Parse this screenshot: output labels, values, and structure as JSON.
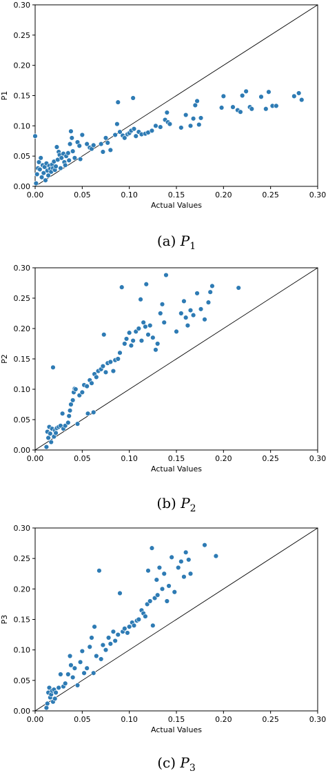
{
  "chart_data": [
    {
      "type": "scatter",
      "xlabel": "Actual Values",
      "ylabel": "P1",
      "xlim": [
        0,
        0.3
      ],
      "ylim": [
        0,
        0.3
      ],
      "xticks": [
        "0.00",
        "0.05",
        "0.10",
        "0.15",
        "0.20",
        "0.25",
        "0.30"
      ],
      "yticks": [
        "0.00",
        "0.05",
        "0.10",
        "0.15",
        "0.20",
        "0.25",
        "0.30"
      ],
      "reference_line": "y = x",
      "caption": {
        "letter": "(a)",
        "var": "P",
        "sub": "1"
      },
      "marker_color": "#2e7bb4",
      "points": [
        [
          0.0,
          0.083
        ],
        [
          0.001,
          0.005
        ],
        [
          0.002,
          0.02
        ],
        [
          0.003,
          0.03
        ],
        [
          0.004,
          0.04
        ],
        [
          0.005,
          0.028
        ],
        [
          0.006,
          0.047
        ],
        [
          0.007,
          0.015
        ],
        [
          0.008,
          0.035
        ],
        [
          0.009,
          0.022
        ],
        [
          0.01,
          0.032
        ],
        [
          0.011,
          0.01
        ],
        [
          0.012,
          0.038
        ],
        [
          0.013,
          0.026
        ],
        [
          0.014,
          0.018
        ],
        [
          0.015,
          0.034
        ],
        [
          0.016,
          0.029
        ],
        [
          0.017,
          0.024
        ],
        [
          0.018,
          0.036
        ],
        [
          0.019,
          0.03
        ],
        [
          0.02,
          0.041
        ],
        [
          0.021,
          0.027
        ],
        [
          0.022,
          0.033
        ],
        [
          0.023,
          0.065
        ],
        [
          0.024,
          0.044
        ],
        [
          0.025,
          0.057
        ],
        [
          0.026,
          0.052
        ],
        [
          0.027,
          0.03
        ],
        [
          0.028,
          0.047
        ],
        [
          0.03,
          0.054
        ],
        [
          0.031,
          0.04
        ],
        [
          0.032,
          0.035
        ],
        [
          0.033,
          0.05
        ],
        [
          0.035,
          0.055
        ],
        [
          0.036,
          0.043
        ],
        [
          0.037,
          0.07
        ],
        [
          0.038,
          0.091
        ],
        [
          0.039,
          0.08
        ],
        [
          0.04,
          0.058
        ],
        [
          0.042,
          0.047
        ],
        [
          0.045,
          0.073
        ],
        [
          0.047,
          0.067
        ],
        [
          0.048,
          0.045
        ],
        [
          0.05,
          0.085
        ],
        [
          0.055,
          0.07
        ],
        [
          0.058,
          0.064
        ],
        [
          0.06,
          0.062
        ],
        [
          0.062,
          0.068
        ],
        [
          0.07,
          0.07
        ],
        [
          0.072,
          0.057
        ],
        [
          0.075,
          0.08
        ],
        [
          0.077,
          0.072
        ],
        [
          0.08,
          0.06
        ],
        [
          0.085,
          0.085
        ],
        [
          0.087,
          0.103
        ],
        [
          0.088,
          0.139
        ],
        [
          0.09,
          0.09
        ],
        [
          0.093,
          0.084
        ],
        [
          0.095,
          0.08
        ],
        [
          0.098,
          0.086
        ],
        [
          0.1,
          0.088
        ],
        [
          0.102,
          0.092
        ],
        [
          0.104,
          0.146
        ],
        [
          0.105,
          0.095
        ],
        [
          0.107,
          0.083
        ],
        [
          0.11,
          0.09
        ],
        [
          0.113,
          0.086
        ],
        [
          0.117,
          0.087
        ],
        [
          0.12,
          0.089
        ],
        [
          0.124,
          0.092
        ],
        [
          0.128,
          0.1
        ],
        [
          0.133,
          0.098
        ],
        [
          0.138,
          0.11
        ],
        [
          0.14,
          0.122
        ],
        [
          0.141,
          0.106
        ],
        [
          0.143,
          0.103
        ],
        [
          0.155,
          0.097
        ],
        [
          0.16,
          0.118
        ],
        [
          0.165,
          0.1
        ],
        [
          0.168,
          0.112
        ],
        [
          0.17,
          0.134
        ],
        [
          0.172,
          0.141
        ],
        [
          0.174,
          0.102
        ],
        [
          0.176,
          0.113
        ],
        [
          0.198,
          0.13
        ],
        [
          0.2,
          0.149
        ],
        [
          0.21,
          0.131
        ],
        [
          0.215,
          0.126
        ],
        [
          0.218,
          0.123
        ],
        [
          0.22,
          0.15
        ],
        [
          0.224,
          0.157
        ],
        [
          0.228,
          0.131
        ],
        [
          0.23,
          0.128
        ],
        [
          0.24,
          0.148
        ],
        [
          0.245,
          0.128
        ],
        [
          0.248,
          0.156
        ],
        [
          0.252,
          0.133
        ],
        [
          0.256,
          0.133
        ],
        [
          0.275,
          0.149
        ],
        [
          0.28,
          0.154
        ],
        [
          0.283,
          0.143
        ]
      ]
    },
    {
      "type": "scatter",
      "xlabel": "Actual Values",
      "ylabel": "P2",
      "xlim": [
        0,
        0.3
      ],
      "ylim": [
        0,
        0.3
      ],
      "xticks": [
        "0.00",
        "0.05",
        "0.10",
        "0.15",
        "0.20",
        "0.25",
        "0.30"
      ],
      "yticks": [
        "0.00",
        "0.05",
        "0.10",
        "0.15",
        "0.20",
        "0.25",
        "0.30"
      ],
      "reference_line": "y = x",
      "caption": {
        "letter": "(b)",
        "var": "P",
        "sub": "2"
      },
      "marker_color": "#2e7bb4",
      "points": [
        [
          0.012,
          0.005
        ],
        [
          0.013,
          0.03
        ],
        [
          0.014,
          0.02
        ],
        [
          0.015,
          0.038
        ],
        [
          0.016,
          0.027
        ],
        [
          0.017,
          0.013
        ],
        [
          0.018,
          0.035
        ],
        [
          0.019,
          0.136
        ],
        [
          0.02,
          0.022
        ],
        [
          0.021,
          0.032
        ],
        [
          0.022,
          0.028
        ],
        [
          0.023,
          0.036
        ],
        [
          0.025,
          0.038
        ],
        [
          0.027,
          0.04
        ],
        [
          0.029,
          0.06
        ],
        [
          0.03,
          0.035
        ],
        [
          0.032,
          0.04
        ],
        [
          0.035,
          0.045
        ],
        [
          0.036,
          0.056
        ],
        [
          0.037,
          0.065
        ],
        [
          0.038,
          0.075
        ],
        [
          0.04,
          0.082
        ],
        [
          0.041,
          0.095
        ],
        [
          0.042,
          0.101
        ],
        [
          0.043,
          0.1
        ],
        [
          0.045,
          0.043
        ],
        [
          0.047,
          0.09
        ],
        [
          0.05,
          0.095
        ],
        [
          0.052,
          0.107
        ],
        [
          0.055,
          0.105
        ],
        [
          0.056,
          0.06
        ],
        [
          0.058,
          0.115
        ],
        [
          0.06,
          0.11
        ],
        [
          0.062,
          0.062
        ],
        [
          0.063,
          0.125
        ],
        [
          0.065,
          0.12
        ],
        [
          0.067,
          0.13
        ],
        [
          0.07,
          0.133
        ],
        [
          0.072,
          0.138
        ],
        [
          0.073,
          0.19
        ],
        [
          0.075,
          0.128
        ],
        [
          0.077,
          0.143
        ],
        [
          0.08,
          0.145
        ],
        [
          0.083,
          0.13
        ],
        [
          0.085,
          0.148
        ],
        [
          0.088,
          0.15
        ],
        [
          0.09,
          0.16
        ],
        [
          0.092,
          0.268
        ],
        [
          0.095,
          0.175
        ],
        [
          0.097,
          0.183
        ],
        [
          0.1,
          0.193
        ],
        [
          0.102,
          0.172
        ],
        [
          0.104,
          0.18
        ],
        [
          0.107,
          0.195
        ],
        [
          0.11,
          0.2
        ],
        [
          0.112,
          0.248
        ],
        [
          0.113,
          0.18
        ],
        [
          0.115,
          0.21
        ],
        [
          0.117,
          0.203
        ],
        [
          0.118,
          0.273
        ],
        [
          0.12,
          0.19
        ],
        [
          0.122,
          0.205
        ],
        [
          0.125,
          0.185
        ],
        [
          0.128,
          0.165
        ],
        [
          0.13,
          0.175
        ],
        [
          0.133,
          0.225
        ],
        [
          0.135,
          0.24
        ],
        [
          0.137,
          0.21
        ],
        [
          0.139,
          0.288
        ],
        [
          0.15,
          0.195
        ],
        [
          0.155,
          0.225
        ],
        [
          0.158,
          0.245
        ],
        [
          0.16,
          0.218
        ],
        [
          0.162,
          0.205
        ],
        [
          0.165,
          0.23
        ],
        [
          0.168,
          0.222
        ],
        [
          0.172,
          0.258
        ],
        [
          0.176,
          0.232
        ],
        [
          0.18,
          0.215
        ],
        [
          0.184,
          0.243
        ],
        [
          0.186,
          0.26
        ],
        [
          0.188,
          0.27
        ],
        [
          0.216,
          0.267
        ]
      ]
    },
    {
      "type": "scatter",
      "xlabel": "Actual Values",
      "ylabel": "P3",
      "xlim": [
        0,
        0.3
      ],
      "ylim": [
        0,
        0.3
      ],
      "xticks": [
        "0.00",
        "0.05",
        "0.10",
        "0.15",
        "0.20",
        "0.25",
        "0.30"
      ],
      "yticks": [
        "0.00",
        "0.05",
        "0.10",
        "0.15",
        "0.20",
        "0.25",
        "0.30"
      ],
      "reference_line": "y = x",
      "caption": {
        "letter": "(c)",
        "var": "P",
        "sub": "3"
      },
      "marker_color": "#2e7bb4",
      "points": [
        [
          0.012,
          0.005
        ],
        [
          0.013,
          0.012
        ],
        [
          0.014,
          0.03
        ],
        [
          0.015,
          0.038
        ],
        [
          0.016,
          0.022
        ],
        [
          0.017,
          0.027
        ],
        [
          0.018,
          0.033
        ],
        [
          0.019,
          0.015
        ],
        [
          0.02,
          0.035
        ],
        [
          0.021,
          0.02
        ],
        [
          0.022,
          0.03
        ],
        [
          0.025,
          0.038
        ],
        [
          0.027,
          0.06
        ],
        [
          0.03,
          0.04
        ],
        [
          0.032,
          0.045
        ],
        [
          0.035,
          0.06
        ],
        [
          0.037,
          0.09
        ],
        [
          0.038,
          0.075
        ],
        [
          0.04,
          0.055
        ],
        [
          0.042,
          0.07
        ],
        [
          0.045,
          0.042
        ],
        [
          0.048,
          0.08
        ],
        [
          0.05,
          0.098
        ],
        [
          0.052,
          0.062
        ],
        [
          0.055,
          0.07
        ],
        [
          0.058,
          0.105
        ],
        [
          0.06,
          0.12
        ],
        [
          0.062,
          0.062
        ],
        [
          0.063,
          0.138
        ],
        [
          0.065,
          0.09
        ],
        [
          0.068,
          0.23
        ],
        [
          0.07,
          0.085
        ],
        [
          0.072,
          0.108
        ],
        [
          0.075,
          0.1
        ],
        [
          0.078,
          0.12
        ],
        [
          0.08,
          0.11
        ],
        [
          0.083,
          0.13
        ],
        [
          0.085,
          0.115
        ],
        [
          0.088,
          0.125
        ],
        [
          0.09,
          0.193
        ],
        [
          0.093,
          0.13
        ],
        [
          0.095,
          0.135
        ],
        [
          0.098,
          0.128
        ],
        [
          0.1,
          0.138
        ],
        [
          0.103,
          0.145
        ],
        [
          0.105,
          0.14
        ],
        [
          0.108,
          0.148
        ],
        [
          0.11,
          0.15
        ],
        [
          0.113,
          0.165
        ],
        [
          0.115,
          0.16
        ],
        [
          0.117,
          0.155
        ],
        [
          0.119,
          0.175
        ],
        [
          0.12,
          0.23
        ],
        [
          0.122,
          0.18
        ],
        [
          0.124,
          0.267
        ],
        [
          0.125,
          0.14
        ],
        [
          0.127,
          0.185
        ],
        [
          0.129,
          0.215
        ],
        [
          0.13,
          0.19
        ],
        [
          0.132,
          0.235
        ],
        [
          0.135,
          0.2
        ],
        [
          0.137,
          0.225
        ],
        [
          0.14,
          0.18
        ],
        [
          0.142,
          0.205
        ],
        [
          0.145,
          0.252
        ],
        [
          0.148,
          0.195
        ],
        [
          0.152,
          0.235
        ],
        [
          0.155,
          0.245
        ],
        [
          0.158,
          0.22
        ],
        [
          0.16,
          0.26
        ],
        [
          0.163,
          0.248
        ],
        [
          0.165,
          0.225
        ],
        [
          0.18,
          0.272
        ],
        [
          0.192,
          0.254
        ]
      ]
    }
  ]
}
